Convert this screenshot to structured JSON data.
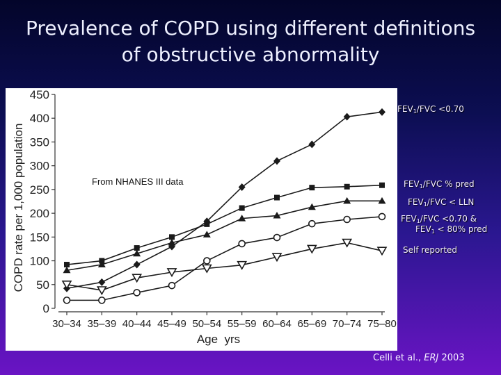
{
  "slide": {
    "title_line1": "Prevalence of COPD using different definitions",
    "title_line2": "of obstructive abnormality",
    "source_note": "From NHANES III data",
    "citation_authors": "Celli et al.,",
    "citation_journal": "ERJ",
    "citation_year": "2003"
  },
  "colors": {
    "series": "#1a1a1a",
    "axis": "#333333",
    "label_text": "#f2ecff"
  },
  "legend_labels": [
    {
      "pre": "FEV",
      "sub": "1",
      "post": "/FVC <0.70"
    },
    {
      "pre": "FEV",
      "sub": "1",
      "post": "/FVC % pred"
    },
    {
      "pre": "FEV",
      "sub": "1",
      "post": "/FVC < LLN"
    },
    {
      "pre": "FEV",
      "sub": "1",
      "post": "/FVC <0.70 &"
    },
    {
      "pre": "FEV",
      "sub": "1",
      "post": " < 80% pred"
    },
    {
      "pre": "Self reported",
      "sub": "",
      "post": ""
    }
  ],
  "chart_data": {
    "type": "line",
    "title": "",
    "xlabel": "Age  yrs",
    "ylabel": "COPD rate per 1,000 population",
    "categories": [
      "30–34",
      "35–39",
      "40–44",
      "45–49",
      "50–54",
      "55–59",
      "60–64",
      "65–69",
      "70–74",
      "75–80"
    ],
    "ylim": [
      0,
      450
    ],
    "yticks": [
      0,
      50,
      100,
      150,
      200,
      250,
      300,
      350,
      400,
      450
    ],
    "series": [
      {
        "name": "FEV1/FVC <0.70",
        "marker": "diamond",
        "values": [
          42,
          55,
          92,
          130,
          183,
          255,
          310,
          345,
          403,
          413
        ]
      },
      {
        "name": "FEV1/FVC % pred",
        "marker": "square",
        "values": [
          92,
          100,
          127,
          150,
          177,
          211,
          233,
          254,
          256,
          259
        ]
      },
      {
        "name": "FEV1/FVC < LLN",
        "marker": "triangle",
        "values": [
          80,
          92,
          115,
          138,
          155,
          189,
          195,
          213,
          226,
          226
        ]
      },
      {
        "name": "FEV1/FVC <0.70 & FEV1 < 80% pred",
        "marker": "circle-open",
        "values": [
          17,
          17,
          33,
          48,
          100,
          136,
          149,
          178,
          187,
          193
        ]
      },
      {
        "name": "Self reported",
        "marker": "triangle-down-open",
        "values": [
          50,
          38,
          64,
          76,
          84,
          91,
          108,
          125,
          138,
          121
        ]
      }
    ]
  }
}
